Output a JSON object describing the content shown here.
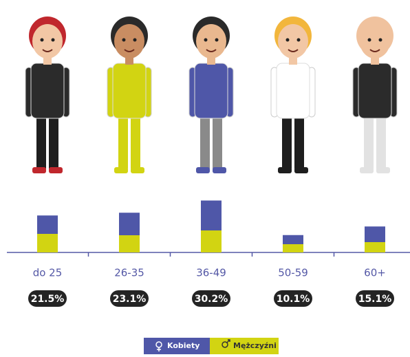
{
  "chart_data": {
    "type": "bar",
    "stacked": true,
    "categories": [
      "do 25",
      "26-35",
      "36-49",
      "50-59",
      "60+"
    ],
    "series": [
      {
        "name": "Kobiety",
        "color": "#4f57a8",
        "values": [
          10.7,
          13.1,
          17.4,
          5.3,
          9.1
        ]
      },
      {
        "name": "Mężczyźni",
        "color": "#d2d412",
        "values": [
          10.8,
          10.0,
          12.8,
          4.8,
          6.0
        ]
      }
    ],
    "totals": [
      21.5,
      23.1,
      30.2,
      10.1,
      15.1
    ],
    "total_labels": [
      "21.5%",
      "23.1%",
      "30.2%",
      "10.1%",
      "15.1%"
    ],
    "legend": "bottom"
  }
}
